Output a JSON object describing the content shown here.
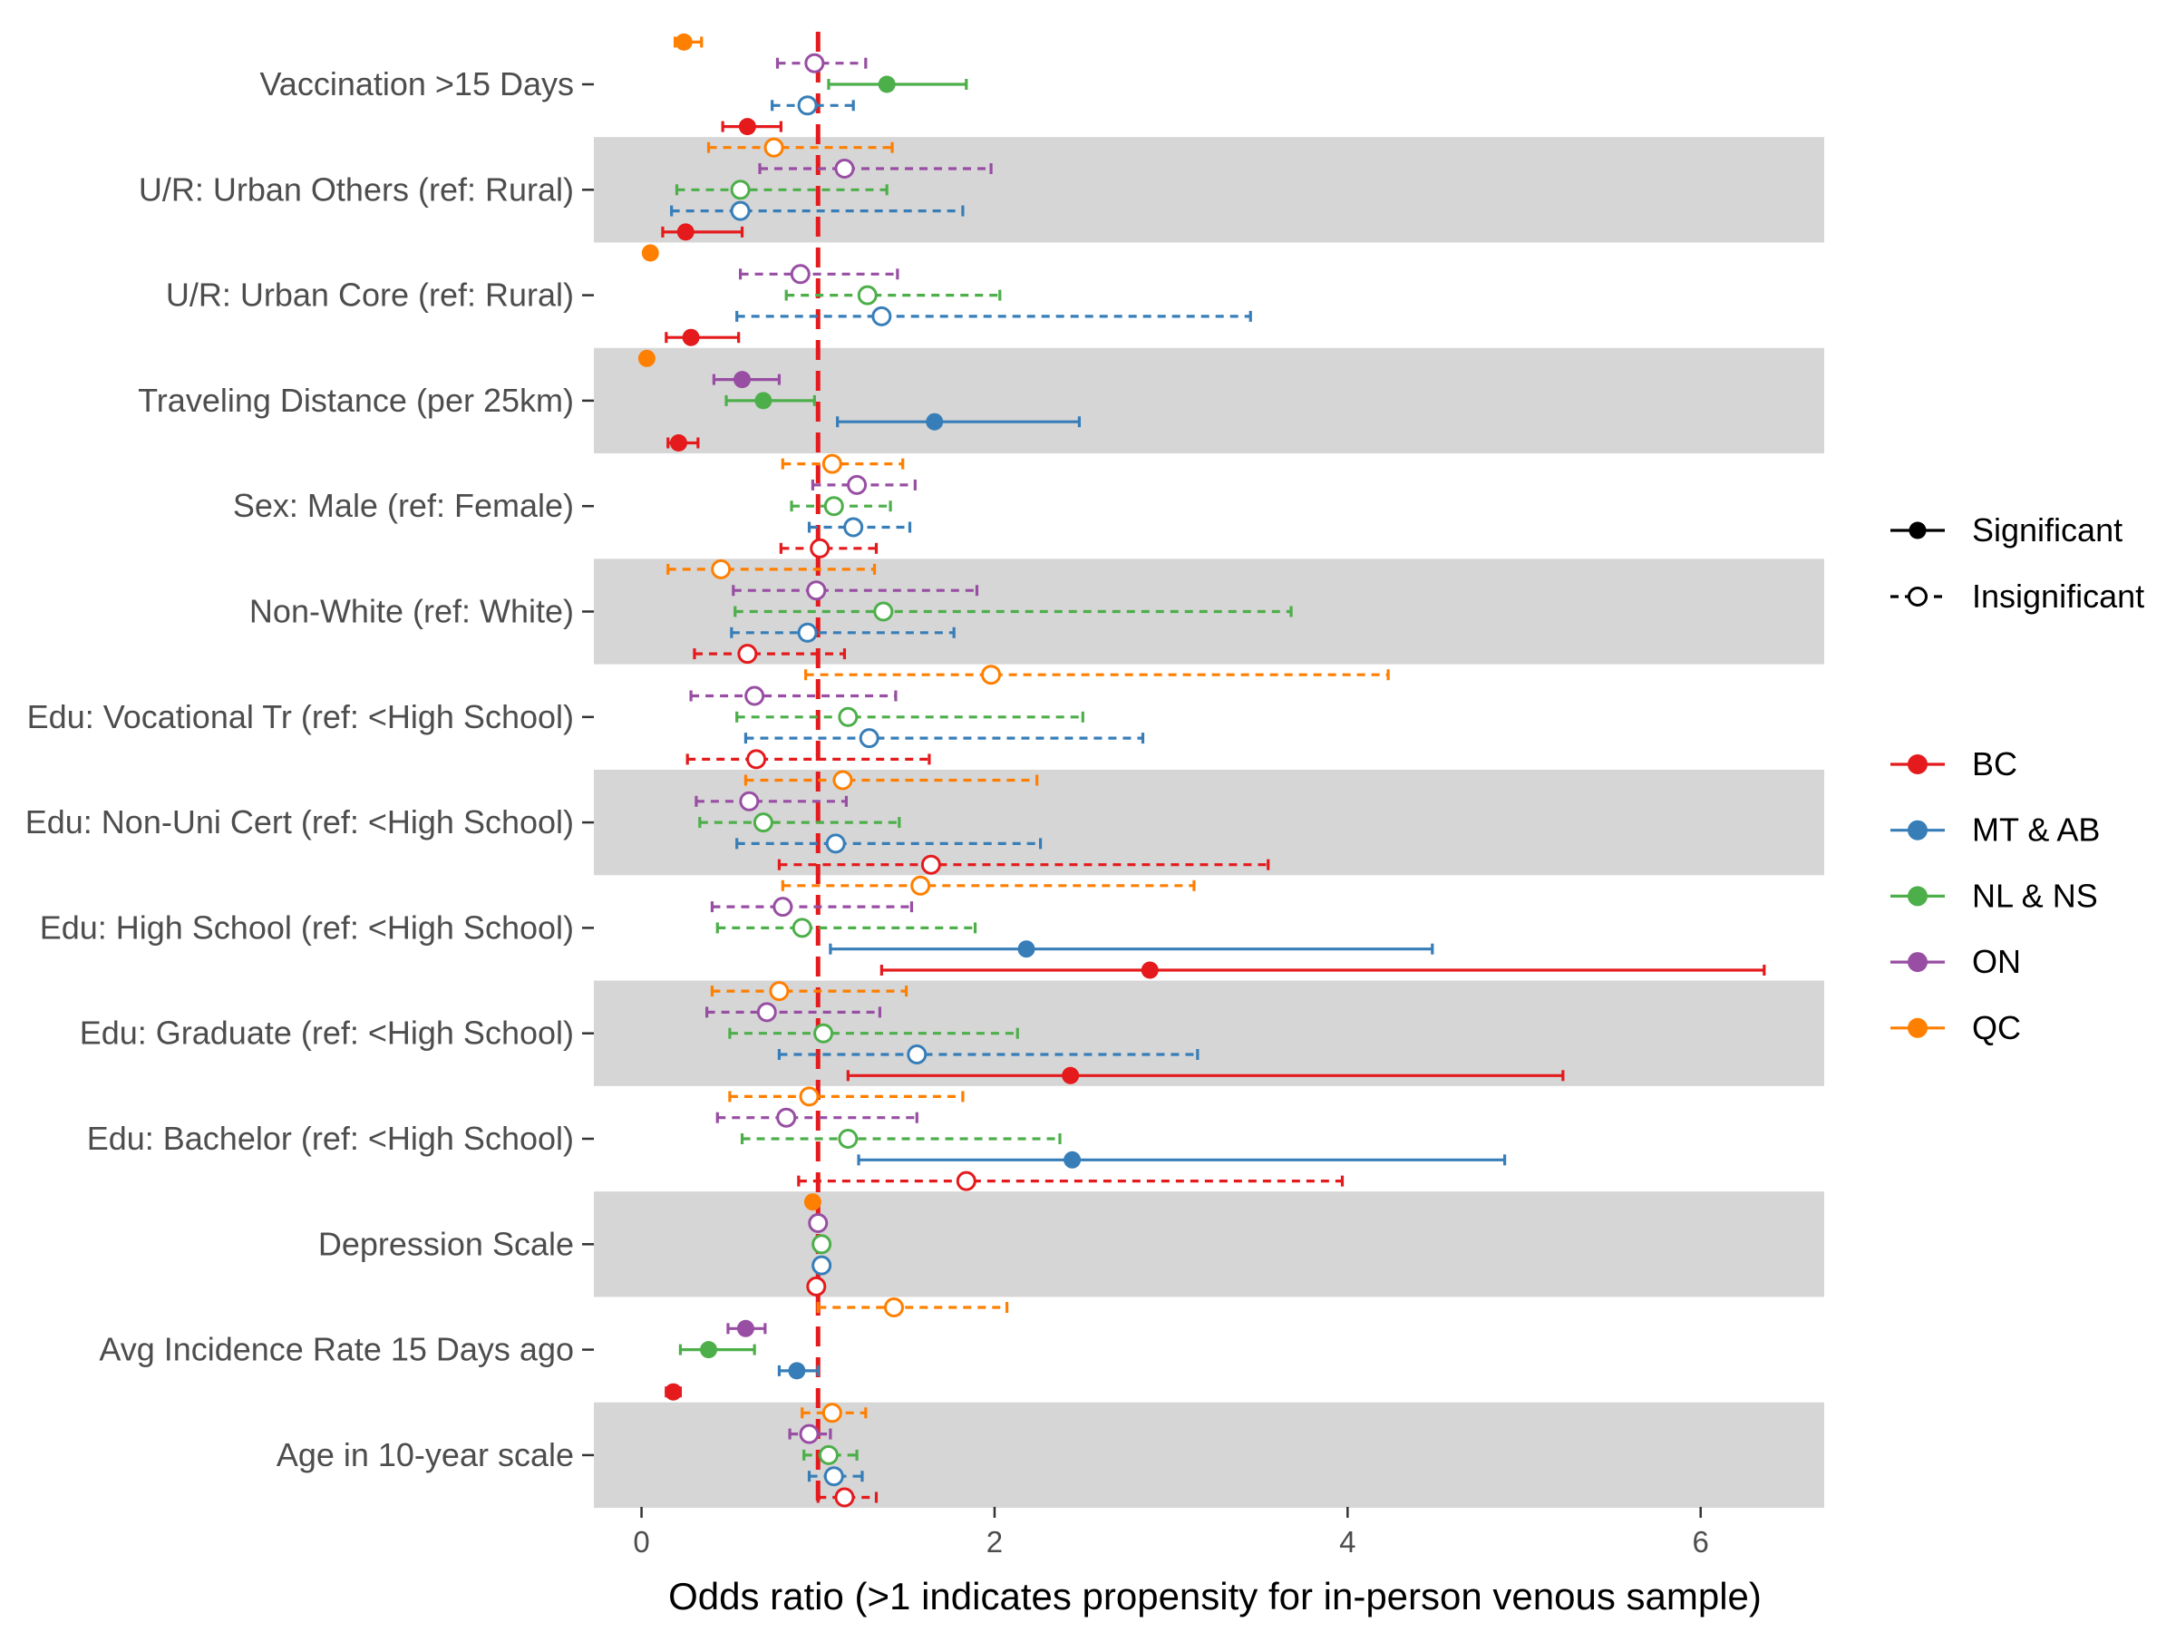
{
  "chart_data": {
    "type": "forest",
    "title": "",
    "xlabel": "Odds ratio (>1 indicates propensity for in-person venous sample)",
    "ylabel": "",
    "xlim": [
      -0.27,
      6.7
    ],
    "xticks": [
      0,
      2,
      4,
      6
    ],
    "xtick_labels": [
      "0",
      "2",
      "4",
      "6"
    ],
    "reference_line": 1,
    "reference_color": "#e41a1c",
    "band_color": "#d6d6d6",
    "categories": [
      "Vaccination >15 Days",
      "U/R: Urban Others (ref: Rural)",
      "U/R: Urban Core (ref: Rural)",
      "Traveling Distance (per 25km)",
      "Sex: Male (ref: Female)",
      "Non-White (ref: White)",
      "Edu: Vocational Tr (ref: <High School)",
      "Edu: Non-Uni Cert (ref: <High School)",
      "Edu: High School (ref: <High School)",
      "Edu: Graduate (ref: <High School)",
      "Edu: Bachelor (ref: <High School)",
      "Depression Scale",
      "Avg Incidence Rate 15 Days ago",
      "Age in 10-year scale"
    ],
    "series": [
      {
        "name": "QC",
        "color": "#ff7f00",
        "points": [
          {
            "est": 0.24,
            "lo": 0.19,
            "hi": 0.34,
            "sig": true
          },
          {
            "est": 0.75,
            "lo": 0.38,
            "hi": 1.42,
            "sig": false
          },
          {
            "est": 0.05,
            "lo": 0.03,
            "hi": 0.07,
            "sig": true
          },
          {
            "est": 0.03,
            "lo": 0.02,
            "hi": 0.05,
            "sig": true
          },
          {
            "est": 1.08,
            "lo": 0.8,
            "hi": 1.48,
            "sig": false
          },
          {
            "est": 0.45,
            "lo": 0.15,
            "hi": 1.32,
            "sig": false
          },
          {
            "est": 1.98,
            "lo": 0.93,
            "hi": 4.23,
            "sig": false
          },
          {
            "est": 1.14,
            "lo": 0.59,
            "hi": 2.24,
            "sig": false
          },
          {
            "est": 1.58,
            "lo": 0.8,
            "hi": 3.13,
            "sig": false
          },
          {
            "est": 0.78,
            "lo": 0.4,
            "hi": 1.5,
            "sig": false
          },
          {
            "est": 0.95,
            "lo": 0.5,
            "hi": 1.82,
            "sig": false
          },
          {
            "est": 0.97,
            "lo": 0.95,
            "hi": 0.99,
            "sig": true
          },
          {
            "est": 1.43,
            "lo": 1.0,
            "hi": 2.07,
            "sig": false
          },
          {
            "est": 1.08,
            "lo": 0.91,
            "hi": 1.27,
            "sig": false
          }
        ]
      },
      {
        "name": "ON",
        "color": "#984ea3",
        "points": [
          {
            "est": 0.98,
            "lo": 0.77,
            "hi": 1.27,
            "sig": false
          },
          {
            "est": 1.15,
            "lo": 0.67,
            "hi": 1.98,
            "sig": false
          },
          {
            "est": 0.9,
            "lo": 0.56,
            "hi": 1.45,
            "sig": false
          },
          {
            "est": 0.57,
            "lo": 0.41,
            "hi": 0.78,
            "sig": true
          },
          {
            "est": 1.22,
            "lo": 0.97,
            "hi": 1.55,
            "sig": false
          },
          {
            "est": 0.99,
            "lo": 0.52,
            "hi": 1.9,
            "sig": false
          },
          {
            "est": 0.64,
            "lo": 0.28,
            "hi": 1.44,
            "sig": false
          },
          {
            "est": 0.61,
            "lo": 0.31,
            "hi": 1.16,
            "sig": false
          },
          {
            "est": 0.8,
            "lo": 0.4,
            "hi": 1.53,
            "sig": false
          },
          {
            "est": 0.71,
            "lo": 0.37,
            "hi": 1.35,
            "sig": false
          },
          {
            "est": 0.82,
            "lo": 0.43,
            "hi": 1.56,
            "sig": false
          },
          {
            "est": 1.0,
            "lo": 0.98,
            "hi": 1.02,
            "sig": false
          },
          {
            "est": 0.59,
            "lo": 0.49,
            "hi": 0.7,
            "sig": true
          },
          {
            "est": 0.95,
            "lo": 0.84,
            "hi": 1.07,
            "sig": false
          }
        ]
      },
      {
        "name": "NL & NS",
        "color": "#4daf4a",
        "points": [
          {
            "est": 1.39,
            "lo": 1.06,
            "hi": 1.84,
            "sig": true
          },
          {
            "est": 0.56,
            "lo": 0.2,
            "hi": 1.39,
            "sig": false
          },
          {
            "est": 1.28,
            "lo": 0.82,
            "hi": 2.03,
            "sig": false
          },
          {
            "est": 0.69,
            "lo": 0.48,
            "hi": 0.98,
            "sig": true
          },
          {
            "est": 1.09,
            "lo": 0.85,
            "hi": 1.41,
            "sig": false
          },
          {
            "est": 1.37,
            "lo": 0.53,
            "hi": 3.68,
            "sig": false
          },
          {
            "est": 1.17,
            "lo": 0.54,
            "hi": 2.5,
            "sig": false
          },
          {
            "est": 0.69,
            "lo": 0.33,
            "hi": 1.46,
            "sig": false
          },
          {
            "est": 0.91,
            "lo": 0.43,
            "hi": 1.89,
            "sig": false
          },
          {
            "est": 1.03,
            "lo": 0.5,
            "hi": 2.13,
            "sig": false
          },
          {
            "est": 1.17,
            "lo": 0.57,
            "hi": 2.37,
            "sig": false
          },
          {
            "est": 1.02,
            "lo": 1.0,
            "hi": 1.04,
            "sig": false
          },
          {
            "est": 0.38,
            "lo": 0.22,
            "hi": 0.64,
            "sig": true
          },
          {
            "est": 1.06,
            "lo": 0.92,
            "hi": 1.22,
            "sig": false
          }
        ]
      },
      {
        "name": "MT & AB",
        "color": "#377eb8",
        "points": [
          {
            "est": 0.94,
            "lo": 0.74,
            "hi": 1.2,
            "sig": false
          },
          {
            "est": 0.56,
            "lo": 0.17,
            "hi": 1.82,
            "sig": false
          },
          {
            "est": 1.36,
            "lo": 0.54,
            "hi": 3.45,
            "sig": false
          },
          {
            "est": 1.66,
            "lo": 1.11,
            "hi": 2.48,
            "sig": true
          },
          {
            "est": 1.2,
            "lo": 0.95,
            "hi": 1.52,
            "sig": false
          },
          {
            "est": 0.94,
            "lo": 0.51,
            "hi": 1.77,
            "sig": false
          },
          {
            "est": 1.29,
            "lo": 0.59,
            "hi": 2.84,
            "sig": false
          },
          {
            "est": 1.1,
            "lo": 0.54,
            "hi": 2.26,
            "sig": false
          },
          {
            "est": 2.18,
            "lo": 1.07,
            "hi": 4.48,
            "sig": true
          },
          {
            "est": 1.56,
            "lo": 0.78,
            "hi": 3.15,
            "sig": false
          },
          {
            "est": 2.44,
            "lo": 1.23,
            "hi": 4.89,
            "sig": true
          },
          {
            "est": 1.02,
            "lo": 1.0,
            "hi": 1.04,
            "sig": false
          },
          {
            "est": 0.88,
            "lo": 0.78,
            "hi": 1.0,
            "sig": true
          },
          {
            "est": 1.09,
            "lo": 0.95,
            "hi": 1.25,
            "sig": false
          }
        ]
      },
      {
        "name": "BC",
        "color": "#e41a1c",
        "points": [
          {
            "est": 0.6,
            "lo": 0.46,
            "hi": 0.79,
            "sig": true
          },
          {
            "est": 0.25,
            "lo": 0.12,
            "hi": 0.57,
            "sig": true
          },
          {
            "est": 0.28,
            "lo": 0.14,
            "hi": 0.55,
            "sig": true
          },
          {
            "est": 0.21,
            "lo": 0.15,
            "hi": 0.32,
            "sig": true
          },
          {
            "est": 1.01,
            "lo": 0.79,
            "hi": 1.33,
            "sig": false
          },
          {
            "est": 0.6,
            "lo": 0.3,
            "hi": 1.15,
            "sig": false
          },
          {
            "est": 0.65,
            "lo": 0.26,
            "hi": 1.63,
            "sig": false
          },
          {
            "est": 1.64,
            "lo": 0.78,
            "hi": 3.55,
            "sig": false
          },
          {
            "est": 2.88,
            "lo": 1.36,
            "hi": 6.36,
            "sig": true
          },
          {
            "est": 2.43,
            "lo": 1.17,
            "hi": 5.22,
            "sig": true
          },
          {
            "est": 1.84,
            "lo": 0.89,
            "hi": 3.97,
            "sig": false
          },
          {
            "est": 0.99,
            "lo": 0.97,
            "hi": 1.01,
            "sig": false
          },
          {
            "est": 0.18,
            "lo": 0.14,
            "hi": 0.22,
            "sig": true
          },
          {
            "est": 1.15,
            "lo": 1.0,
            "hi": 1.33,
            "sig": false
          }
        ]
      }
    ],
    "legend": {
      "placement": "right",
      "linetype_items": [
        "Significant",
        "Insignificant"
      ],
      "color_items": [
        "BC",
        "MT & AB",
        "NL & NS",
        "ON",
        "QC"
      ]
    }
  }
}
